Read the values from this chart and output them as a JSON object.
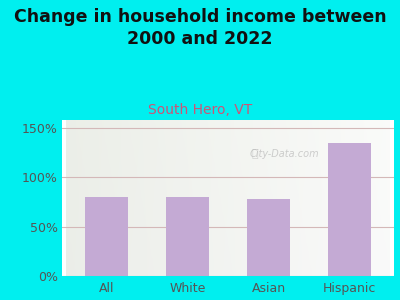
{
  "title": "Change in household income between\n2000 and 2022",
  "subtitle": "South Hero, VT",
  "categories": [
    "All",
    "White",
    "Asian",
    "Hispanic"
  ],
  "values": [
    80,
    80,
    78,
    135
  ],
  "bar_color": "#c4aad4",
  "background_color": "#00efef",
  "grid_color": "#d4b8b8",
  "yticks": [
    0,
    50,
    100,
    150
  ],
  "ylim": [
    0,
    158
  ],
  "title_fontsize": 12.5,
  "subtitle_fontsize": 10,
  "subtitle_color": "#cc5577",
  "tick_label_color": "#555555",
  "axis_label_color": "#555555",
  "watermark": "City-Data.com"
}
